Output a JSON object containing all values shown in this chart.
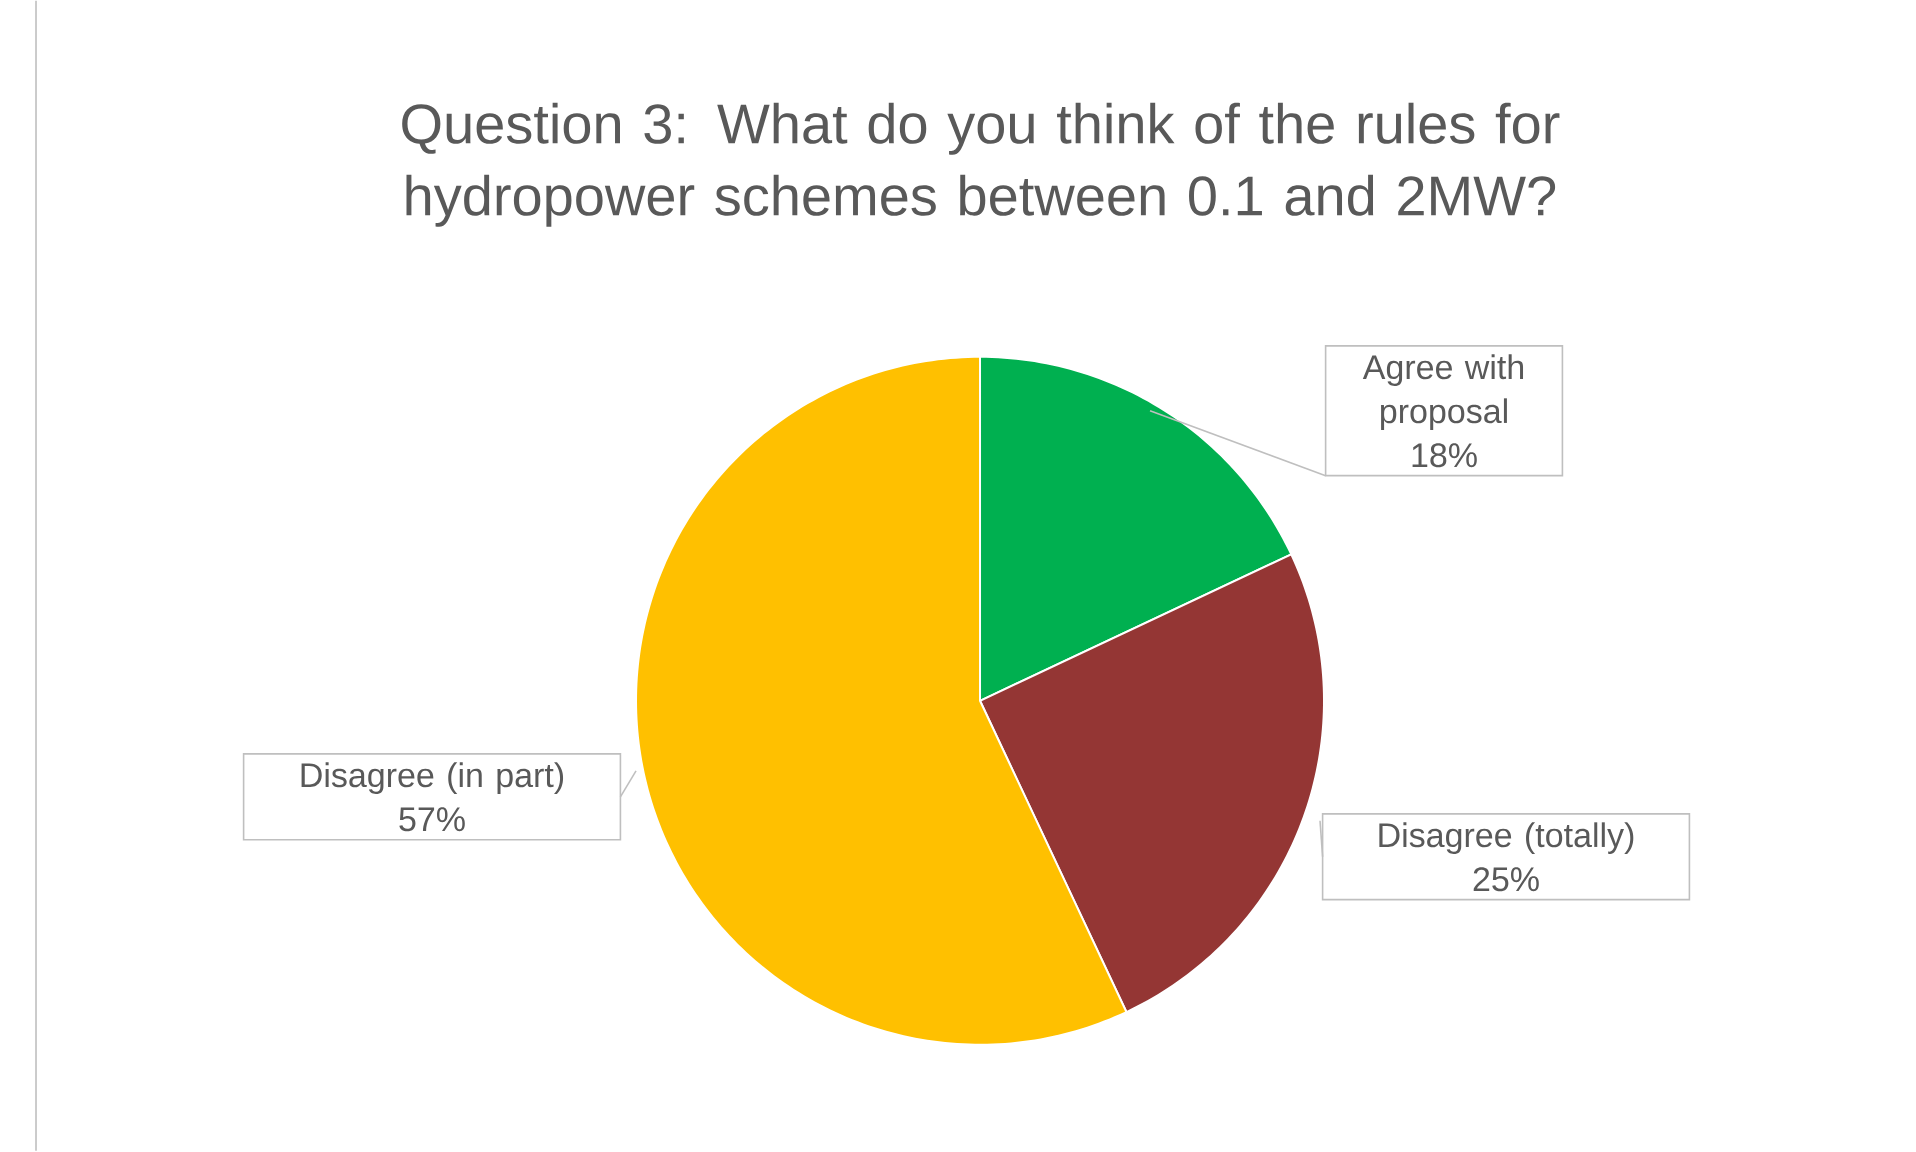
{
  "chart_data": {
    "type": "pie",
    "title": "Question 3:  What do you think of the rules for hydropower schemes between 0.1 and 2MW?",
    "categories": [
      "Agree with proposal",
      "Disagree (totally)",
      "Disagree (in part)"
    ],
    "values": [
      18,
      25,
      57
    ],
    "value_labels": [
      "18%",
      "25%",
      "57%"
    ],
    "colors": [
      "#00b050",
      "#943634",
      "#ffc000"
    ]
  }
}
